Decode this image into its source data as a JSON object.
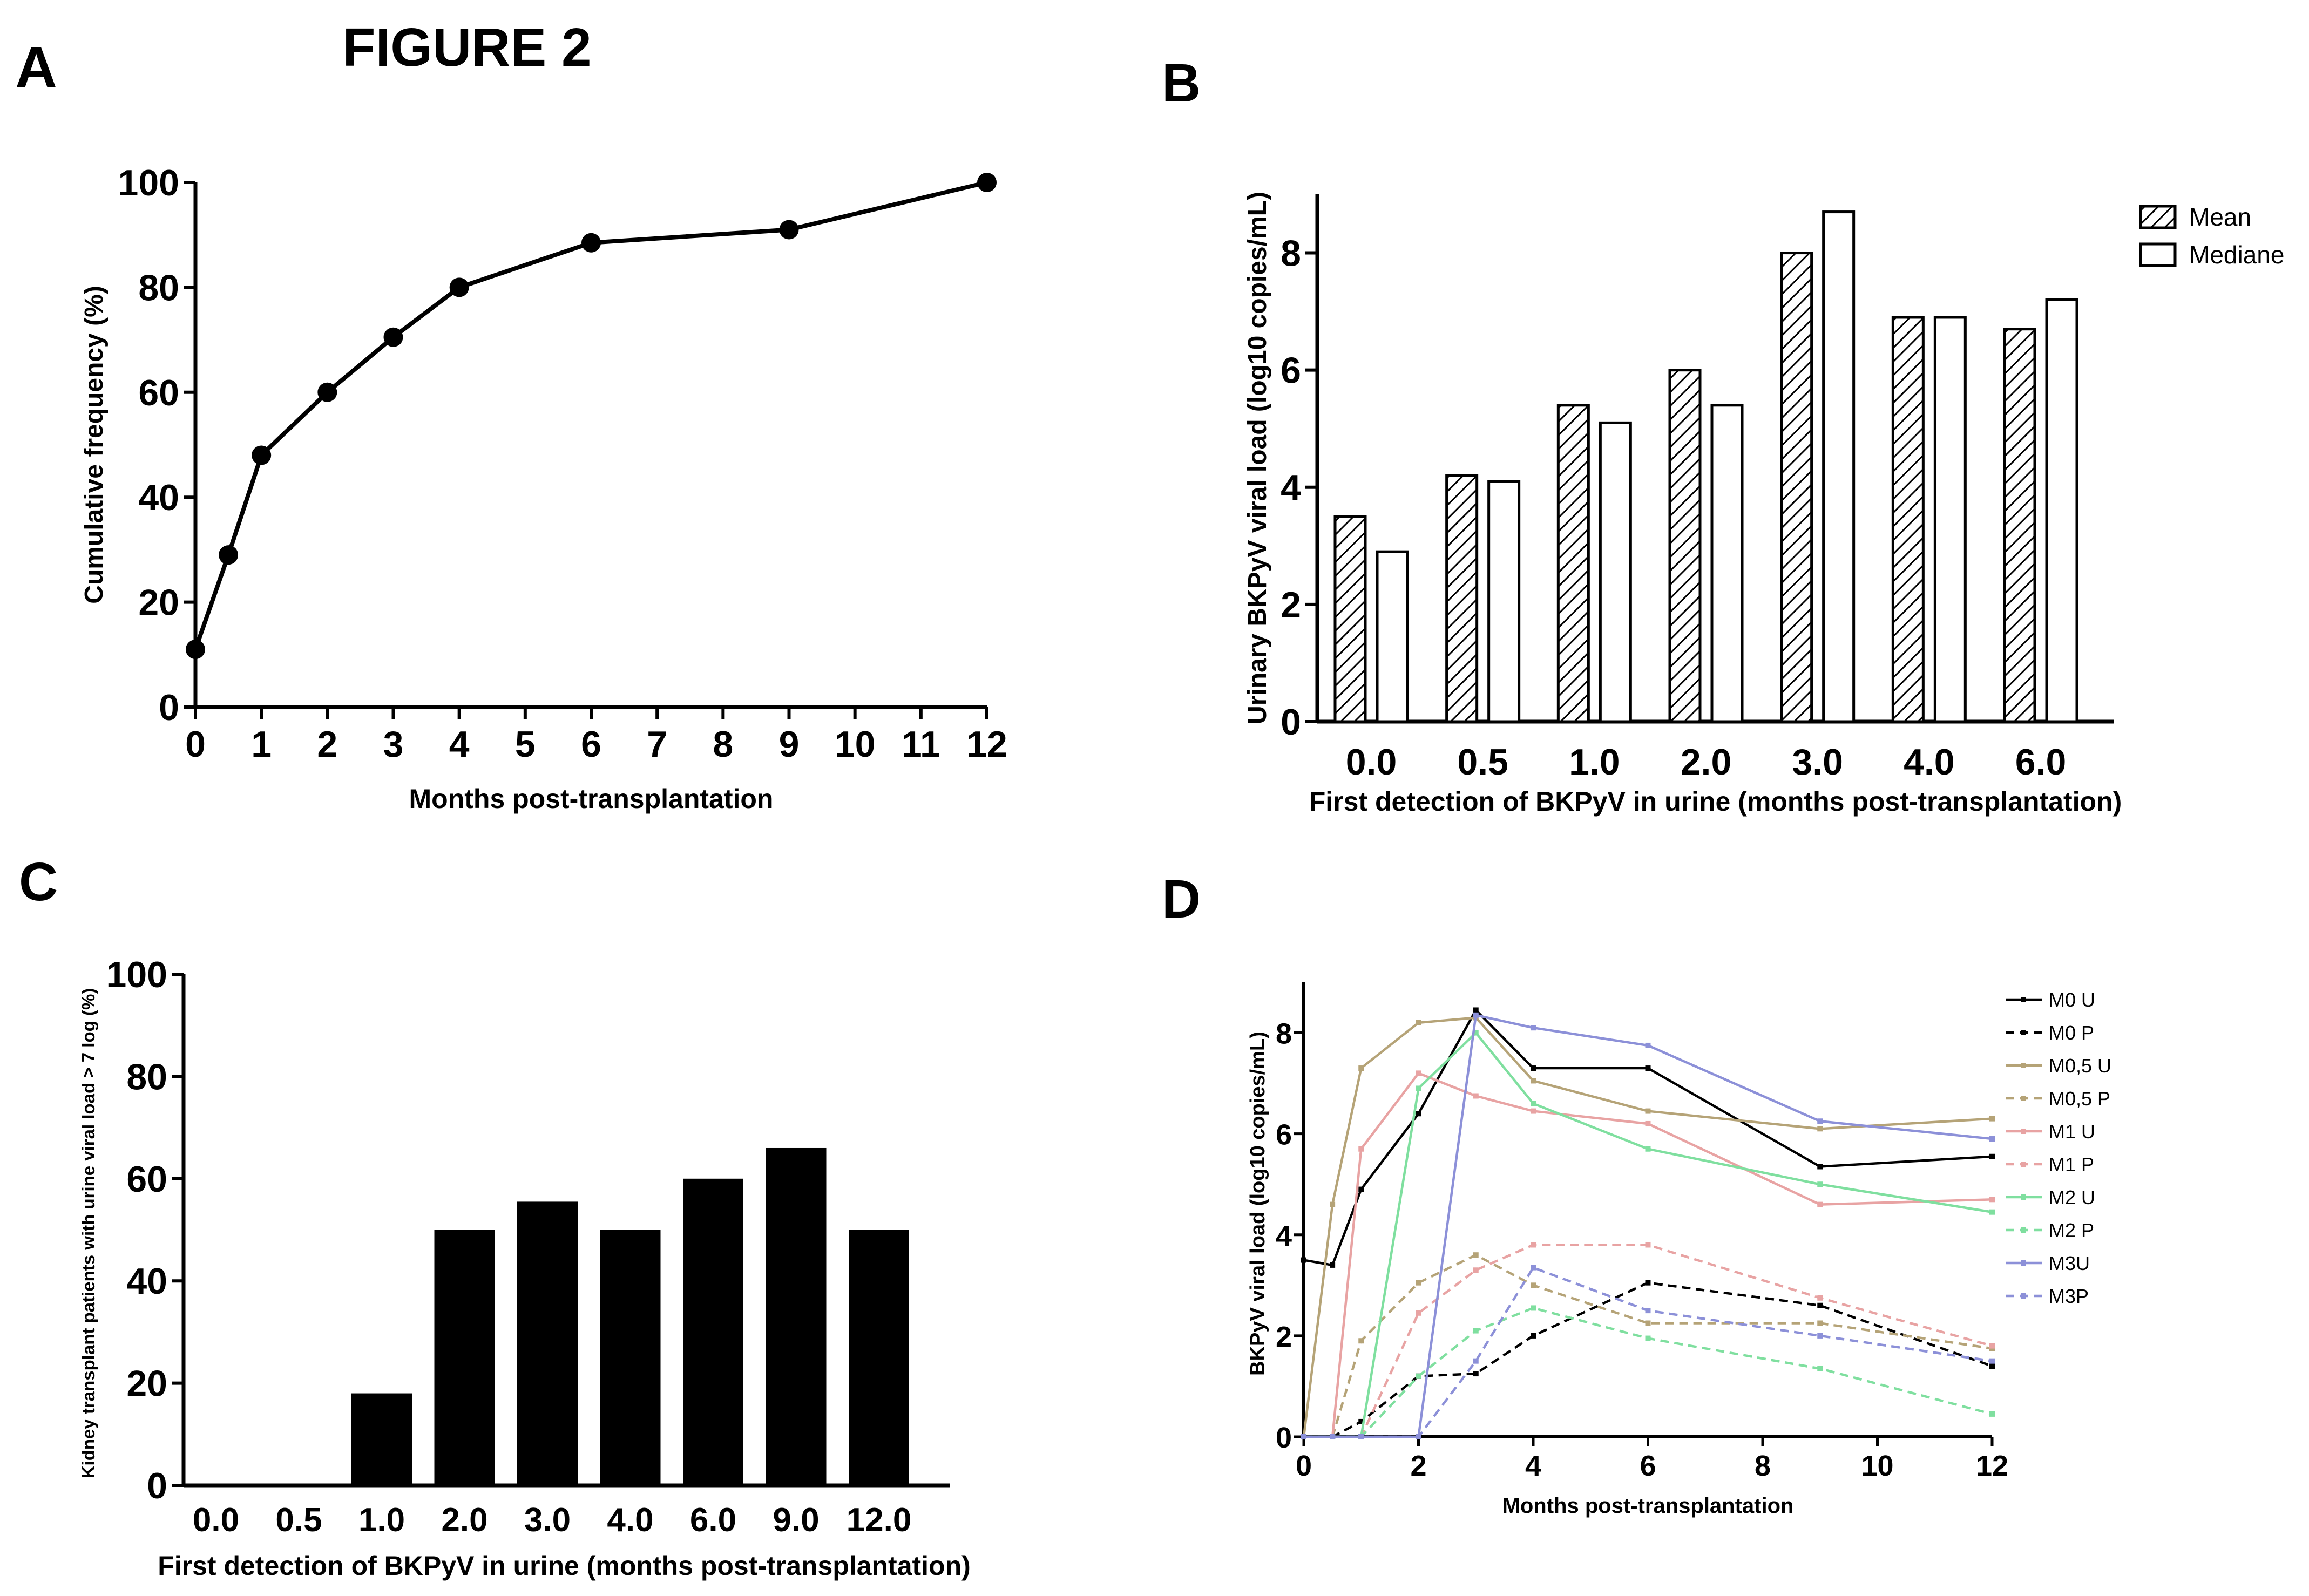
{
  "figure_title": "FIGURE 2",
  "panel_labels": {
    "a": "A",
    "b": "B",
    "c": "C",
    "d": "D"
  },
  "chart_data": [
    {
      "id": "A",
      "type": "line",
      "title": "",
      "xlabel": "Months post-transplantation",
      "ylabel": "Cumulative frequency    (%)",
      "xlim": [
        0,
        12
      ],
      "ylim": [
        0,
        100
      ],
      "xticks": [
        0,
        1,
        2,
        3,
        4,
        5,
        6,
        7,
        8,
        9,
        10,
        11,
        12
      ],
      "xtick_labels": [
        "0",
        "1",
        "2",
        "3",
        "4",
        "5",
        "6",
        "7",
        "8",
        "9",
        "10",
        "11",
        "12"
      ],
      "yticks": [
        0,
        20,
        40,
        60,
        80,
        100
      ],
      "ytick_labels": [
        "0",
        "20",
        "40",
        "60",
        "80",
        "100"
      ],
      "x": [
        0,
        0.5,
        1,
        2,
        3,
        4,
        6,
        9,
        12
      ],
      "y": [
        11,
        29,
        48,
        60,
        70.5,
        80,
        88.5,
        91,
        100
      ]
    },
    {
      "id": "B",
      "type": "bar",
      "title": "",
      "xlabel": "First detection of BKPyV in urine (months post-transplantation)",
      "ylabel": "Urinary BKPyV viral load (log10 copies/mL)",
      "ylim": [
        0,
        9
      ],
      "yticks": [
        0,
        2,
        4,
        6,
        8
      ],
      "ytick_labels": [
        "0",
        "2",
        "4",
        "6",
        "8"
      ],
      "categories": [
        "0.0",
        "0.5",
        "1.0",
        "2.0",
        "3.0",
        "4.0",
        "6.0"
      ],
      "series": [
        {
          "name": "Mean",
          "pattern": "hatched",
          "values": [
            3.5,
            4.2,
            5.4,
            6.0,
            8.0,
            6.9,
            6.7
          ]
        },
        {
          "name": "Mediane",
          "pattern": "empty",
          "values": [
            2.9,
            4.1,
            5.1,
            5.4,
            8.7,
            6.9,
            7.2
          ]
        }
      ],
      "legend_position": "top-right"
    },
    {
      "id": "C",
      "type": "bar",
      "title": "",
      "xlabel": "First detection of BKPyV in urine (months post-transplantation)",
      "ylabel": "Kidney transplant patients with urine viral load > 7 log (%)",
      "ylim": [
        0,
        100
      ],
      "yticks": [
        0,
        20,
        40,
        60,
        80,
        100
      ],
      "ytick_labels": [
        "0",
        "20",
        "40",
        "60",
        "80",
        "100"
      ],
      "categories": [
        "0.0",
        "0.5",
        "1.0",
        "2.0",
        "3.0",
        "4.0",
        "6.0",
        "9.0",
        "12.0"
      ],
      "values": [
        0,
        0,
        18,
        50,
        55.5,
        50,
        60,
        66,
        50
      ]
    },
    {
      "id": "D",
      "type": "line",
      "title": "",
      "xlabel": "Months post-transplantation",
      "ylabel": "BKPyV viral load (log10 copies/mL)",
      "xlim": [
        0,
        12
      ],
      "ylim": [
        0,
        9
      ],
      "xticks": [
        0,
        2,
        4,
        6,
        8,
        10,
        12
      ],
      "xtick_labels": [
        "0",
        "2",
        "4",
        "6",
        "8",
        "10",
        "12"
      ],
      "yticks": [
        0,
        2,
        4,
        6,
        8
      ],
      "ytick_labels": [
        "0",
        "2",
        "4",
        "6",
        "8"
      ],
      "x": [
        0,
        0.5,
        1,
        2,
        3,
        4,
        6,
        9,
        12
      ],
      "legend_position": "top-right",
      "series": [
        {
          "name": "M0 U",
          "color": "#000000",
          "dashed": false,
          "values": [
            3.5,
            3.4,
            4.9,
            6.4,
            8.45,
            7.3,
            7.3,
            5.35,
            5.55
          ]
        },
        {
          "name": "M0 P",
          "color": "#000000",
          "dashed": true,
          "values": [
            0,
            0,
            0.3,
            1.2,
            1.25,
            2.0,
            3.05,
            2.6,
            1.4
          ]
        },
        {
          "name": "M0,5 U",
          "color": "#b5a377",
          "dashed": false,
          "values": [
            0,
            4.6,
            7.3,
            8.2,
            8.3,
            7.05,
            6.45,
            6.1,
            6.3
          ]
        },
        {
          "name": "M0,5 P",
          "color": "#b5a377",
          "dashed": true,
          "values": [
            0,
            0,
            1.9,
            3.05,
            3.6,
            3.0,
            2.25,
            2.25,
            1.75
          ]
        },
        {
          "name": "M1 U",
          "color": "#e8a3a3",
          "dashed": false,
          "values": [
            0,
            0,
            5.7,
            7.2,
            6.75,
            6.45,
            6.2,
            4.6,
            4.7
          ]
        },
        {
          "name": "M1 P",
          "color": "#e8a3a3",
          "dashed": true,
          "values": [
            0,
            0,
            0,
            2.45,
            3.3,
            3.8,
            3.8,
            2.75,
            1.8
          ]
        },
        {
          "name": "M2 U",
          "color": "#7fdf9f",
          "dashed": false,
          "values": [
            0,
            0,
            0,
            6.9,
            8.0,
            6.6,
            5.7,
            5.0,
            4.45
          ]
        },
        {
          "name": "M2 P",
          "color": "#7fdf9f",
          "dashed": true,
          "values": [
            0,
            0,
            0,
            1.2,
            2.1,
            2.55,
            1.95,
            1.35,
            0.45
          ]
        },
        {
          "name": "M3U",
          "color": "#8c90d8",
          "dashed": false,
          "values": [
            0,
            0,
            0,
            0,
            8.35,
            8.1,
            7.75,
            6.25,
            5.9
          ]
        },
        {
          "name": "M3P",
          "color": "#8c90d8",
          "dashed": true,
          "values": [
            0,
            0,
            0,
            0,
            1.5,
            3.35,
            2.5,
            2.0,
            1.5
          ]
        }
      ]
    }
  ]
}
